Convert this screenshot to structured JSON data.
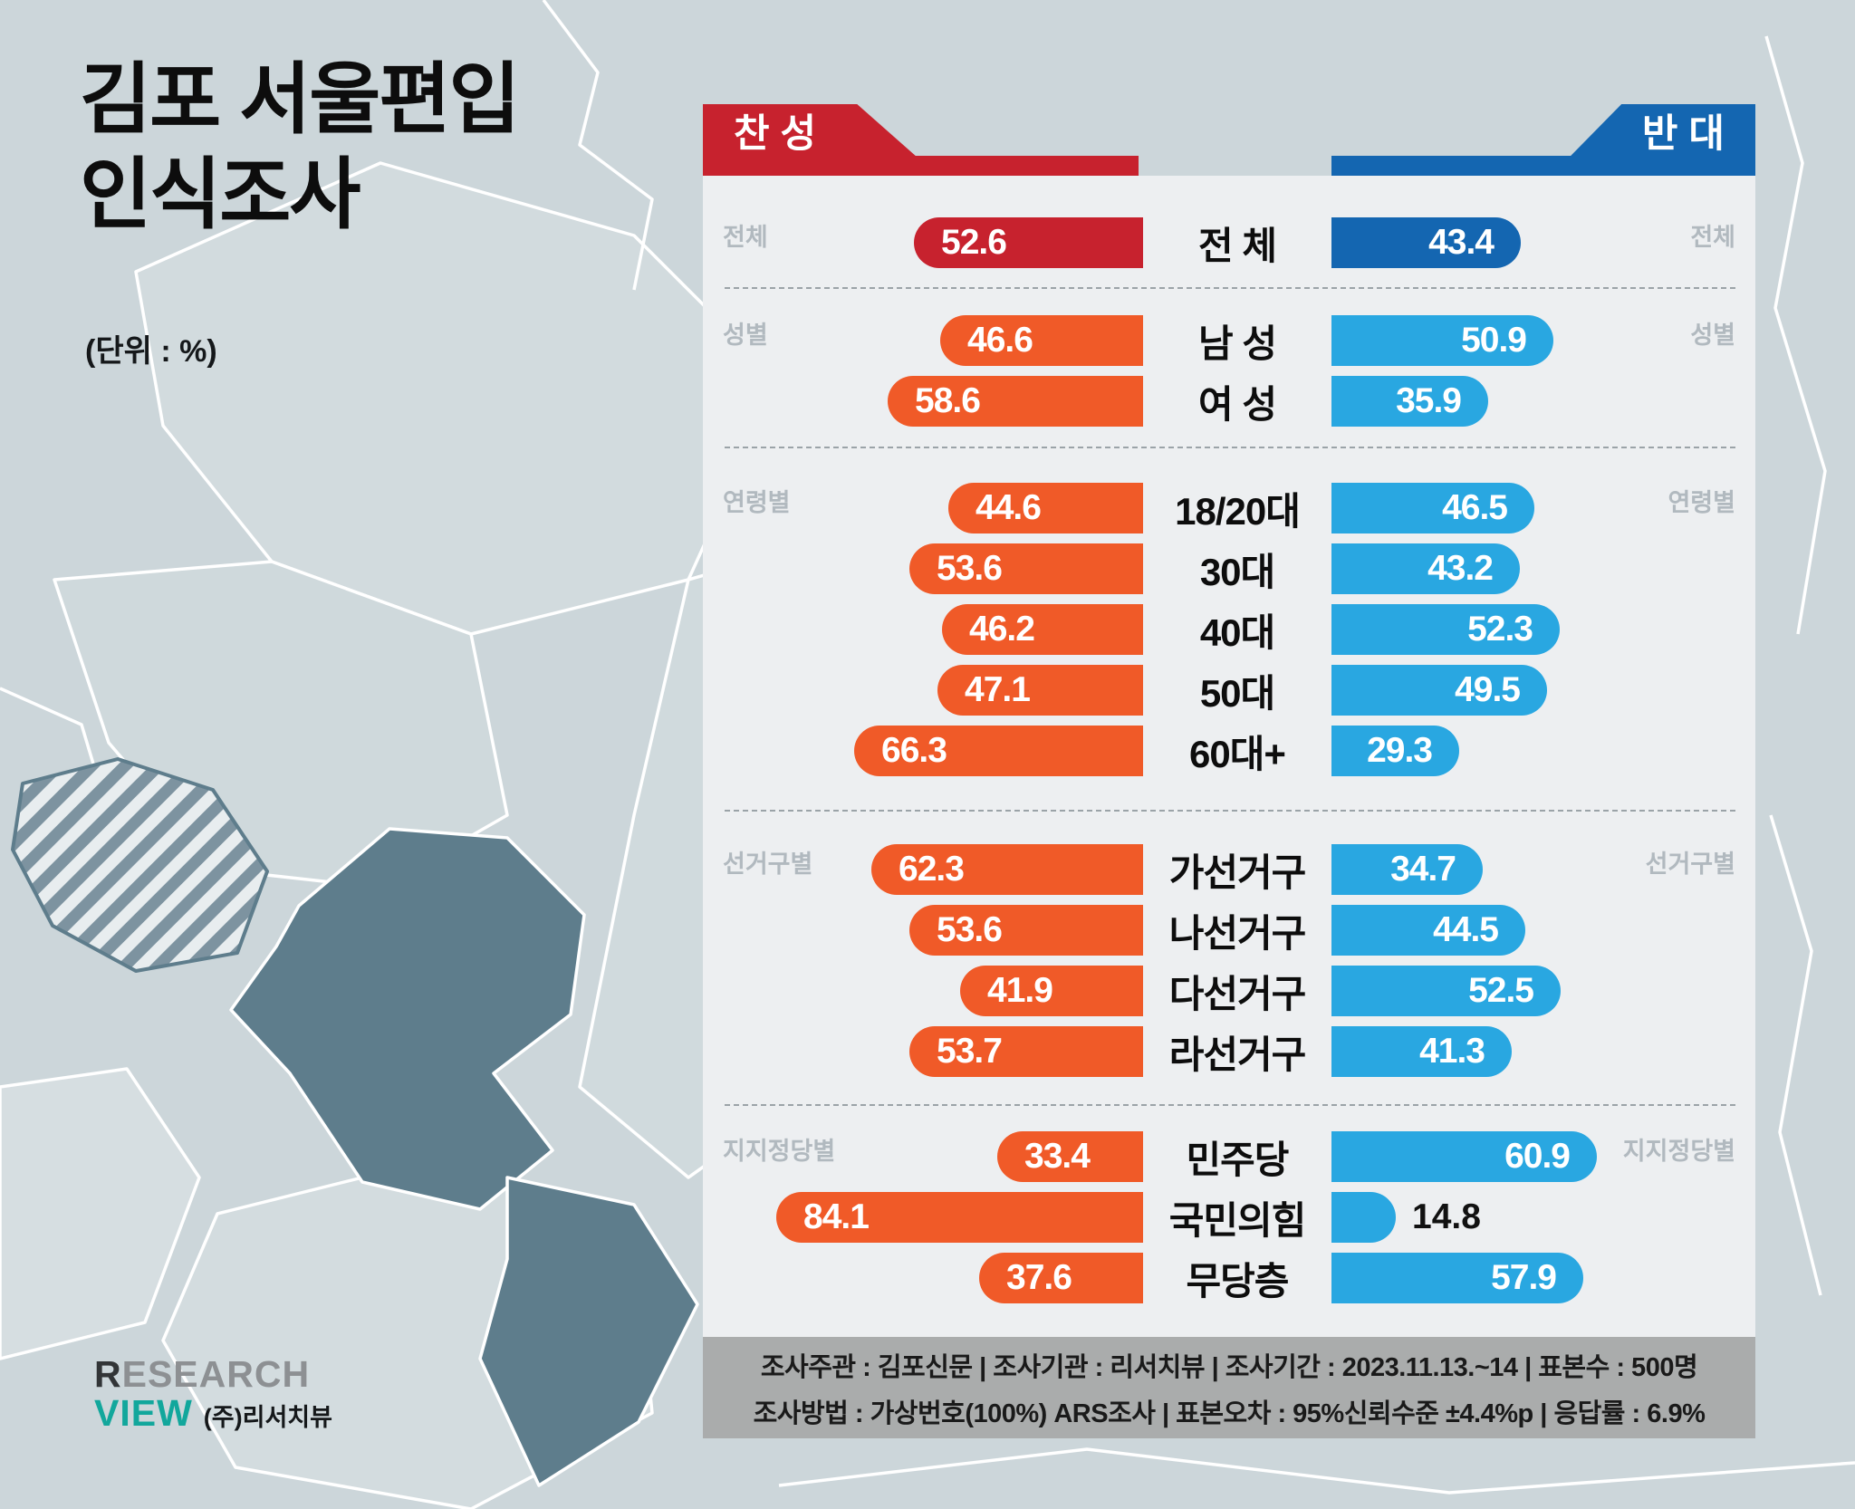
{
  "title": {
    "line1": "김포 서울편입",
    "line2": "인식조사",
    "unit": "(단위 : %)"
  },
  "headers": {
    "agree": "찬 성",
    "disagree": "반 대"
  },
  "colors": {
    "agree_strong": "#c7222e",
    "agree": "#f05a28",
    "disagree_strong": "#1466b1",
    "disagree": "#29a7e1",
    "panel": "#edeff1",
    "background": "#ccd6da",
    "footer_bg": "#aaacac",
    "seoul_region": "#5e7d8c",
    "logo_teal": "#12a79c"
  },
  "sections": [
    {
      "name": "전체",
      "rows": [
        {
          "label": "전 체",
          "agree": 52.6,
          "disagree": 43.4,
          "emphasis": true
        }
      ]
    },
    {
      "name": "성별",
      "rows": [
        {
          "label": "남 성",
          "agree": 46.6,
          "disagree": 50.9
        },
        {
          "label": "여 성",
          "agree": 58.6,
          "disagree": 35.9
        }
      ]
    },
    {
      "name": "연령별",
      "rows": [
        {
          "label": "18/20대",
          "agree": 44.6,
          "disagree": 46.5
        },
        {
          "label": "30대",
          "agree": 53.6,
          "disagree": 43.2
        },
        {
          "label": "40대",
          "agree": 46.2,
          "disagree": 52.3
        },
        {
          "label": "50대",
          "agree": 47.1,
          "disagree": 49.5
        },
        {
          "label": "60대+",
          "agree": 66.3,
          "disagree": 29.3
        }
      ]
    },
    {
      "name": "선거구별",
      "rows": [
        {
          "label": "가선거구",
          "agree": 62.3,
          "disagree": 34.7
        },
        {
          "label": "나선거구",
          "agree": 53.6,
          "disagree": 44.5
        },
        {
          "label": "다선거구",
          "agree": 41.9,
          "disagree": 52.5
        },
        {
          "label": "라선거구",
          "agree": 53.7,
          "disagree": 41.3
        }
      ]
    },
    {
      "name": "지지정당별",
      "rows": [
        {
          "label": "민주당",
          "agree": 33.4,
          "disagree": 60.9
        },
        {
          "label": "국민의힘",
          "agree": 84.1,
          "disagree": 14.8
        },
        {
          "label": "무당층",
          "agree": 37.6,
          "disagree": 57.9
        }
      ]
    }
  ],
  "footer": {
    "line1": "조사주관 : 김포신문  |  조사기관 : 리서치뷰  |  조사기간 : 2023.11.13.~14  |  표본수 : 500명",
    "line2": "조사방법 : 가상번호(100%) ARS조사  |  표본오차 : 95%신뢰수준 ±4.4%p  |  응답률 : 6.9%"
  },
  "logo": {
    "research_r": "R",
    "research_rest": "ESEARCH",
    "view": "VIEW",
    "company": "(주)리서치뷰"
  },
  "chart_data": {
    "type": "bar",
    "orientation": "horizontal-butterfly",
    "title": "김포 서울편입 인식조사",
    "unit": "%",
    "xlim": [
      0,
      100
    ],
    "categories": [
      "전 체",
      "남 성",
      "여 성",
      "18/20대",
      "30대",
      "40대",
      "50대",
      "60대+",
      "가선거구",
      "나선거구",
      "다선거구",
      "라선거구",
      "민주당",
      "국민의힘",
      "무당층"
    ],
    "series": [
      {
        "name": "찬성",
        "color": "#f05a28",
        "values": [
          52.6,
          46.6,
          58.6,
          44.6,
          53.6,
          46.2,
          47.1,
          66.3,
          62.3,
          53.6,
          41.9,
          53.7,
          33.4,
          84.1,
          37.6
        ]
      },
      {
        "name": "반대",
        "color": "#29a7e1",
        "values": [
          43.4,
          50.9,
          35.9,
          46.5,
          43.2,
          52.3,
          49.5,
          29.3,
          34.7,
          44.5,
          52.5,
          41.3,
          60.9,
          14.8,
          57.9
        ]
      }
    ],
    "group_labels": [
      "전체",
      "성별",
      "연령별",
      "선거구별",
      "지지정당별"
    ]
  }
}
